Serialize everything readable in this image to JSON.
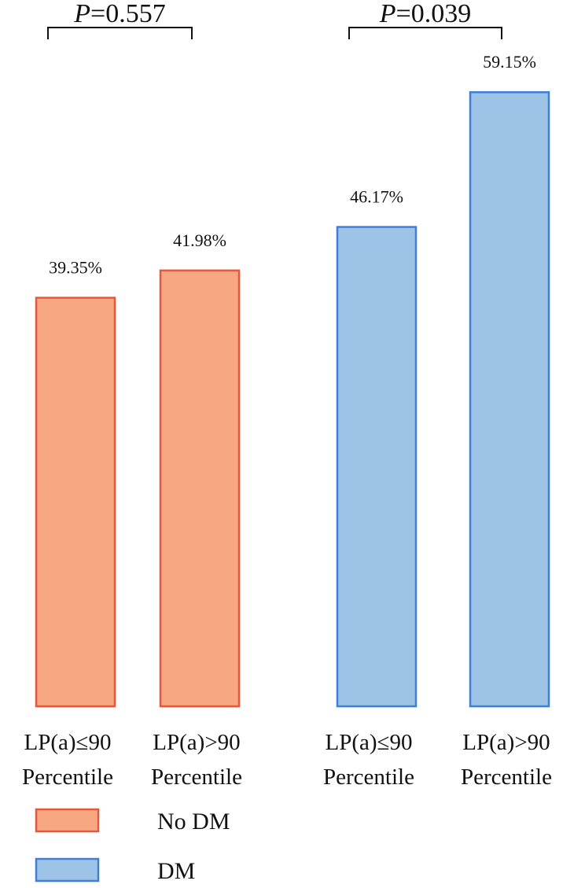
{
  "chart_data": {
    "type": "bar",
    "unit": "%",
    "ylim": [
      0,
      100
    ],
    "grid": false,
    "legend_position": "bottom-left",
    "groups": [
      {
        "name": "No DM",
        "color": "#f7a882",
        "border": "#e8573a",
        "p_label": "P",
        "p_value": "=0.557",
        "bars": [
          {
            "label_line1": "LP(a)≤90",
            "label_line2": "Percentile",
            "value": 39.35,
            "value_label": "39.35%"
          },
          {
            "label_line1": "LP(a)>90",
            "label_line2": "Percentile",
            "value": 41.98,
            "value_label": "41.98%"
          }
        ]
      },
      {
        "name": "DM",
        "color": "#9dc3e6",
        "border": "#3d7fd9",
        "p_label": "P",
        "p_value": "=0.039",
        "bars": [
          {
            "label_line1": "LP(a)≤90",
            "label_line2": "Percentile",
            "value": 46.17,
            "value_label": "46.17%"
          },
          {
            "label_line1": "LP(a)>90",
            "label_line2": "Percentile",
            "value": 59.15,
            "value_label": "59.15%"
          }
        ]
      }
    ],
    "legend": [
      {
        "label": "No DM",
        "color": "#f7a882",
        "border": "#e8573a"
      },
      {
        "label": "DM",
        "color": "#9dc3e6",
        "border": "#3d7fd9"
      }
    ]
  }
}
